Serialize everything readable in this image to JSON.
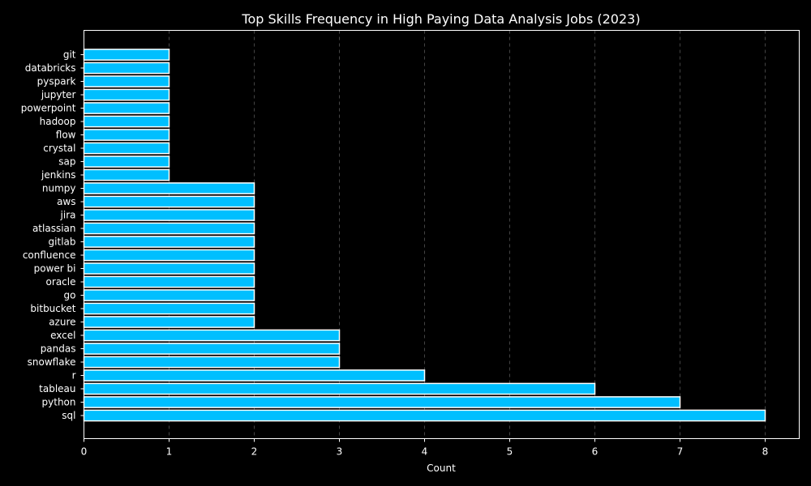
{
  "chart_data": {
    "type": "bar",
    "orientation": "horizontal",
    "title": "Top Skills Frequency in High Paying Data Analysis Jobs (2023)",
    "xlabel": "Count",
    "ylabel": "",
    "xlim": [
      0,
      8.4
    ],
    "x_ticks": [
      "0",
      "1",
      "2",
      "3",
      "4",
      "5",
      "6",
      "7",
      "8"
    ],
    "grid": "vertical dashed",
    "categories": [
      "sql",
      "python",
      "tableau",
      "r",
      "snowflake",
      "pandas",
      "excel",
      "azure",
      "bitbucket",
      "go",
      "oracle",
      "power bi",
      "confluence",
      "gitlab",
      "atlassian",
      "jira",
      "aws",
      "numpy",
      "jenkins",
      "sap",
      "crystal",
      "flow",
      "hadoop",
      "powerpoint",
      "jupyter",
      "pyspark",
      "databricks",
      "git"
    ],
    "values": [
      8,
      7,
      6,
      4,
      3,
      3,
      3,
      2,
      2,
      2,
      2,
      2,
      2,
      2,
      2,
      2,
      2,
      2,
      1,
      1,
      1,
      1,
      1,
      1,
      1,
      1,
      1,
      1
    ]
  },
  "colors": {
    "background": "#000000",
    "bar_fill": "#00bfff",
    "bar_edge": "#ffffff",
    "text": "#ffffff",
    "grid": "#555555"
  }
}
